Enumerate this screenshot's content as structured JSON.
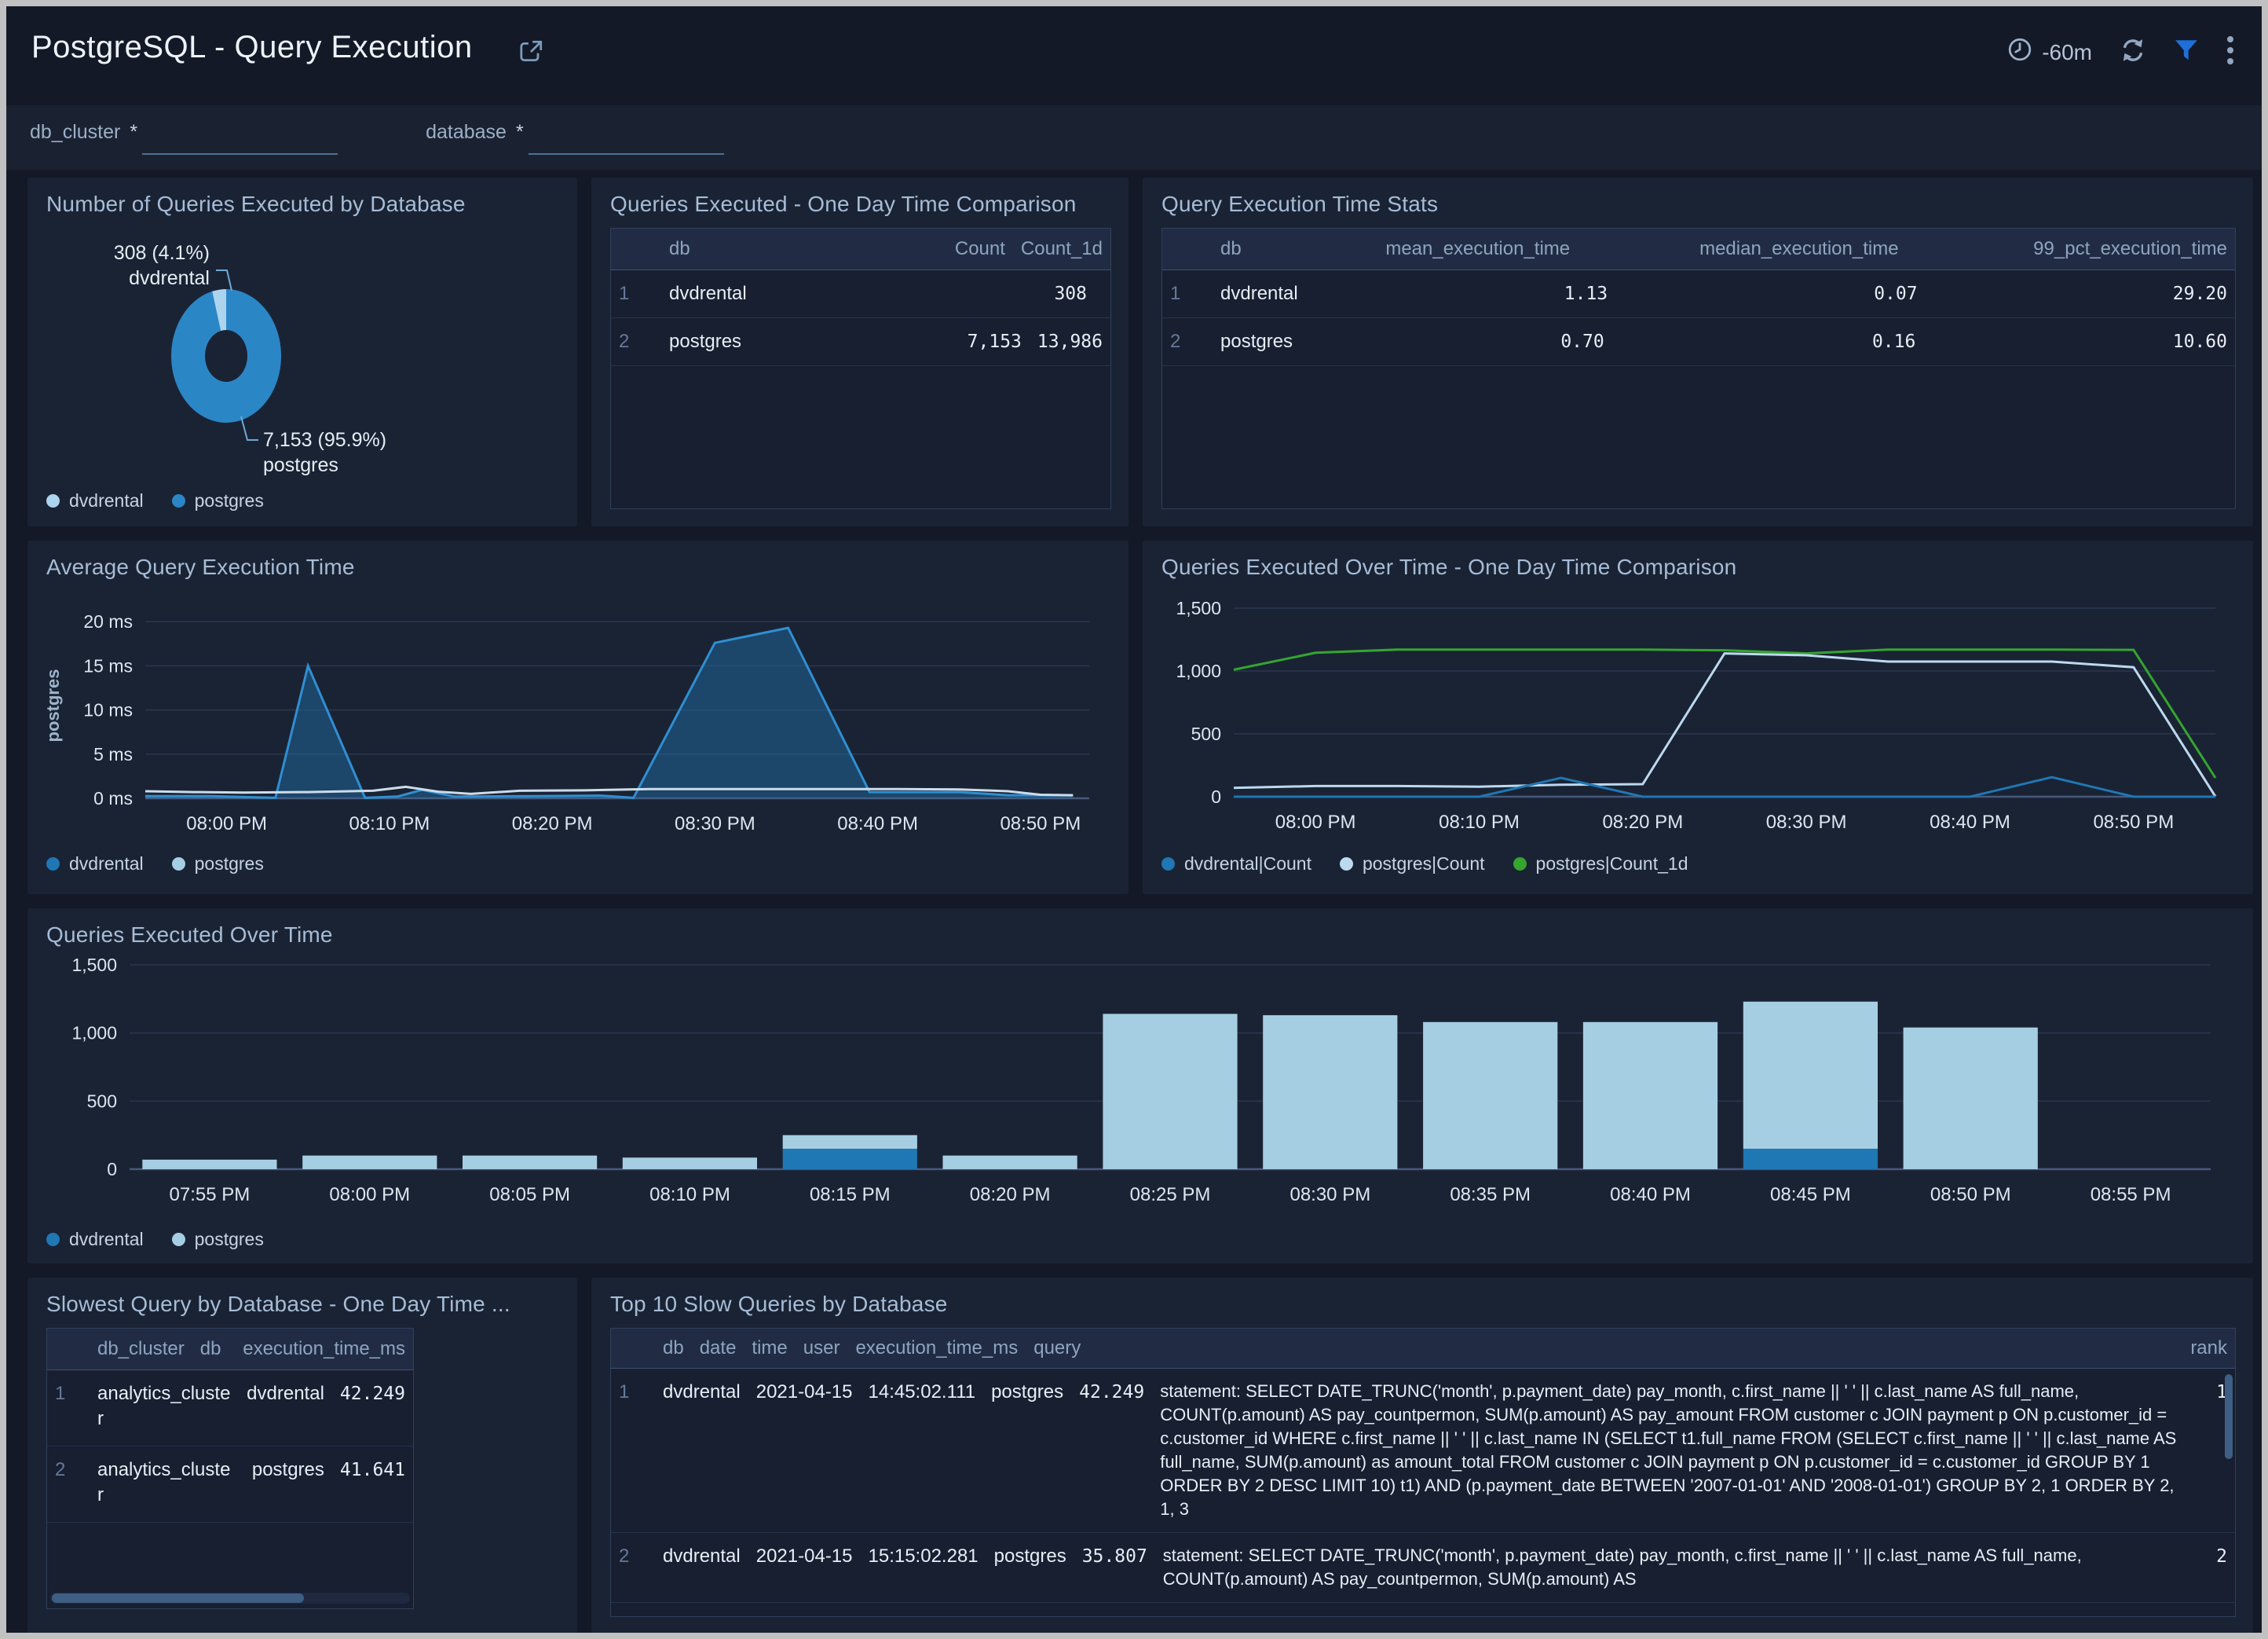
{
  "header": {
    "title": "PostgreSQL - Query Execution",
    "time_range": "-60m",
    "icons": [
      "share-icon",
      "clock-icon",
      "refresh-icon",
      "filter-icon",
      "kebab-menu-icon"
    ]
  },
  "filters": {
    "fields": [
      {
        "label": "db_cluster",
        "required": "*",
        "value": ""
      },
      {
        "label": "database",
        "required": "*",
        "value": ""
      }
    ]
  },
  "colors": {
    "dvdrental_blue": "#1f77b4",
    "postgres_light_blue": "#a6cee3",
    "count_1d_green": "#35a52f",
    "donut_postgres": "#2b86c6",
    "donut_dvdrental": "#abd4ef",
    "filter_icon_blue": "#1e6fd9",
    "panel_bg": "#1a2334",
    "page_bg": "#131927"
  },
  "chart_data": [
    {
      "type": "pie",
      "title": "Number of Queries Executed by Database",
      "slices": [
        {
          "label": "dvdrental",
          "value": 308,
          "pct": 4.1,
          "color": "#abd4ef",
          "callout_line1": "308 (4.1%)",
          "callout_line2": "dvdrental"
        },
        {
          "label": "postgres",
          "value": 7153,
          "pct": 95.9,
          "color": "#2b86c6",
          "callout_line1": "7,153 (95.9%)",
          "callout_line2": "postgres"
        }
      ],
      "legend": [
        {
          "label": "dvdrental",
          "color": "#abd4ef"
        },
        {
          "label": "postgres",
          "color": "#2b86c6"
        }
      ]
    },
    {
      "type": "table",
      "title": "Queries Executed - One Day Time Comparison",
      "columns": [
        "db",
        "Count",
        "Count_1d"
      ],
      "rows": [
        [
          "dvdrental",
          "308",
          ""
        ],
        [
          "postgres",
          "7,153",
          "13,986"
        ]
      ]
    },
    {
      "type": "table",
      "title": "Query Execution Time Stats",
      "columns": [
        "db",
        "mean_execution_time",
        "median_execution_time",
        "99_pct_execution_time"
      ],
      "rows": [
        [
          "dvdrental",
          "1.13",
          "0.07",
          "29.20"
        ],
        [
          "postgres",
          "0.70",
          "0.16",
          "10.60"
        ]
      ]
    },
    {
      "type": "area",
      "title": "Average Query Execution Time",
      "ylabel": "postgres",
      "ylim": [
        0,
        21
      ],
      "yticks": [
        [
          0,
          "0 ms"
        ],
        [
          5,
          "5 ms"
        ],
        [
          10,
          "10 ms"
        ],
        [
          15,
          "15 ms"
        ],
        [
          20,
          "20 ms"
        ]
      ],
      "xlim": [
        0,
        58
      ],
      "xticks": [
        [
          5,
          "08:00 PM"
        ],
        [
          15,
          "08:10 PM"
        ],
        [
          25,
          "08:20 PM"
        ],
        [
          35,
          "08:30 PM"
        ],
        [
          45,
          "08:40 PM"
        ],
        [
          55,
          "08:50 PM"
        ]
      ],
      "series": [
        {
          "name": "dvdrental",
          "stroke": "#2f8fd2",
          "fill": "#1f77b4",
          "fill_opacity": 0.42,
          "points": [
            [
              0,
              0.25
            ],
            [
              4,
              0.25
            ],
            [
              8,
              0.05
            ],
            [
              10,
              15
            ],
            [
              13.5,
              0.05
            ],
            [
              15.5,
              0.2
            ],
            [
              17,
              0.95
            ],
            [
              19,
              0.2
            ],
            [
              24,
              0.25
            ],
            [
              28,
              0.3
            ],
            [
              30,
              0.05
            ],
            [
              35,
              17.6
            ],
            [
              39.5,
              19.3
            ],
            [
              44.5,
              0.7
            ],
            [
              50,
              0.7
            ],
            [
              53,
              0.35
            ],
            [
              57,
              0.35
            ]
          ]
        },
        {
          "name": "postgres",
          "stroke": "#ccdcea",
          "points": [
            [
              0,
              0.8
            ],
            [
              3,
              0.7
            ],
            [
              6,
              0.65
            ],
            [
              10,
              0.7
            ],
            [
              14,
              0.85
            ],
            [
              16,
              1.3
            ],
            [
              18,
              0.75
            ],
            [
              20,
              0.5
            ],
            [
              23,
              0.85
            ],
            [
              27,
              0.9
            ],
            [
              31,
              1.05
            ],
            [
              36,
              1.05
            ],
            [
              41,
              1.05
            ],
            [
              46,
              1.05
            ],
            [
              50,
              1.0
            ],
            [
              53,
              0.8
            ],
            [
              55,
              0.4
            ],
            [
              57,
              0.35
            ]
          ]
        }
      ],
      "legend": [
        {
          "label": "dvdrental",
          "color": "#1f77b4"
        },
        {
          "label": "postgres",
          "color": "#a6cee3"
        }
      ]
    },
    {
      "type": "line",
      "title": "Queries Executed Over Time - One Day Time Comparison",
      "ylim": [
        0,
        1500
      ],
      "yticks": [
        [
          0,
          "0"
        ],
        [
          500,
          "500"
        ],
        [
          1000,
          "1,000"
        ],
        [
          1500,
          "1,500"
        ]
      ],
      "xlim": [
        0,
        60
      ],
      "xticks": [
        [
          5,
          "08:00 PM"
        ],
        [
          15,
          "08:10 PM"
        ],
        [
          25,
          "08:20 PM"
        ],
        [
          35,
          "08:30 PM"
        ],
        [
          45,
          "08:40 PM"
        ],
        [
          55,
          "08:50 PM"
        ]
      ],
      "x_step_minutes": 5,
      "series": [
        {
          "name": "postgres|Count_1d",
          "stroke": "#35a52f",
          "values": [
            1010,
            1145,
            1170,
            1170,
            1170,
            1170,
            1165,
            1140,
            1170,
            1170,
            1170,
            1168,
            150
          ]
        },
        {
          "name": "postgres|Count",
          "stroke": "#bcd9ef",
          "values": [
            70,
            85,
            85,
            80,
            95,
            100,
            1140,
            1125,
            1075,
            1075,
            1075,
            1030,
            2
          ]
        },
        {
          "name": "dvdrental|Count",
          "stroke": "#1f77b4",
          "values": [
            0,
            0,
            0,
            0,
            150,
            0,
            0,
            0,
            0,
            0,
            155,
            0,
            0
          ]
        }
      ],
      "legend": [
        {
          "label": "dvdrental|Count",
          "color": "#1f77b4"
        },
        {
          "label": "postgres|Count",
          "color": "#bcd9ef"
        },
        {
          "label": "postgres|Count_1d",
          "color": "#35a52f"
        }
      ]
    },
    {
      "type": "bar",
      "title": "Queries Executed Over Time",
      "ylim": [
        0,
        1500
      ],
      "yticks": [
        [
          0,
          "0"
        ],
        [
          500,
          "500"
        ],
        [
          1000,
          "1,000"
        ],
        [
          1500,
          "1,500"
        ]
      ],
      "categories": [
        "07:55 PM",
        "08:00 PM",
        "08:05 PM",
        "08:10 PM",
        "08:15 PM",
        "08:20 PM",
        "08:25 PM",
        "08:30 PM",
        "08:35 PM",
        "08:40 PM",
        "08:45 PM",
        "08:50 PM",
        "08:55 PM"
      ],
      "series": [
        {
          "name": "dvdrental",
          "color": "#1f77b4",
          "values": [
            0,
            0,
            0,
            0,
            150,
            0,
            0,
            0,
            0,
            0,
            150,
            0,
            0
          ]
        },
        {
          "name": "postgres",
          "color": "#a6cee3",
          "values": [
            70,
            100,
            100,
            85,
            100,
            100,
            1140,
            1130,
            1080,
            1080,
            1080,
            1040,
            0
          ]
        }
      ],
      "legend": [
        {
          "label": "dvdrental",
          "color": "#1f77b4"
        },
        {
          "label": "postgres",
          "color": "#a6cee3"
        }
      ]
    },
    {
      "type": "table",
      "title": "Slowest Query by Database - One Day Time ...",
      "columns": [
        "db_cluster",
        "db",
        "execution_time_ms"
      ],
      "rows": [
        [
          "analytics_cluster",
          "dvdrental",
          "42.249"
        ],
        [
          "analytics_cluster",
          "postgres",
          "41.641"
        ]
      ]
    },
    {
      "type": "table",
      "title": "Top 10 Slow Queries by Database",
      "columns": [
        "db",
        "date",
        "time",
        "user",
        "execution_time_ms",
        "query",
        "rank"
      ],
      "rows": [
        [
          "dvdrental",
          "2021-04-15",
          "14:45:02.111",
          "postgres",
          "42.249",
          "statement: SELECT DATE_TRUNC('month', p.payment_date) pay_month, c.first_name || ' ' || c.last_name AS full_name, COUNT(p.amount) AS pay_countpermon, SUM(p.amount) AS pay_amount FROM customer c JOIN payment p ON p.customer_id = c.customer_id WHERE c.first_name || ' ' || c.last_name IN (SELECT t1.full_name FROM (SELECT c.first_name || ' ' || c.last_name AS full_name, SUM(p.amount) as amount_total FROM customer c JOIN payment p ON p.customer_id = c.customer_id GROUP BY 1 ORDER BY 2 DESC LIMIT 10) t1) AND (p.payment_date BETWEEN '2007-01-01' AND '2008-01-01') GROUP BY 2, 1 ORDER BY 2, 1, 3",
          "1"
        ],
        [
          "dvdrental",
          "2021-04-15",
          "15:15:02.281",
          "postgres",
          "35.807",
          "statement: SELECT DATE_TRUNC('month', p.payment_date) pay_month, c.first_name || ' ' || c.last_name AS full_name, COUNT(p.amount) AS pay_countpermon, SUM(p.amount) AS",
          "2"
        ]
      ]
    }
  ]
}
